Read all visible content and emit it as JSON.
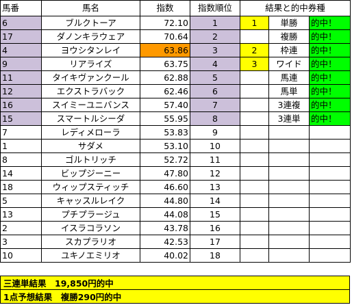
{
  "headers": {
    "umaban": "馬番",
    "bamei": "馬名",
    "shisu": "指数",
    "juni": "指数順位",
    "kekka": "結果と的中券種"
  },
  "rows": [
    {
      "umaban": "6",
      "bamei": "ブルクトーア",
      "shisu": "72.10",
      "juni": "1",
      "mark": "1",
      "ken": "単勝",
      "hit": "的中！"
    },
    {
      "umaban": "17",
      "bamei": "ダノンキラウェア",
      "shisu": "70.64",
      "juni": "2",
      "mark": "",
      "ken": "複勝",
      "hit": "的中！"
    },
    {
      "umaban": "4",
      "bamei": "ヨウシタンレイ",
      "shisu": "63.86",
      "juni": "3",
      "mark": "2",
      "ken": "枠連",
      "hit": "的中！"
    },
    {
      "umaban": "9",
      "bamei": "リアライズ",
      "shisu": "63.75",
      "juni": "4",
      "mark": "3",
      "ken": "ワイド",
      "hit": "的中！"
    },
    {
      "umaban": "11",
      "bamei": "タイキヴァンクール",
      "shisu": "62.88",
      "juni": "5",
      "mark": "",
      "ken": "馬連",
      "hit": "的中！"
    },
    {
      "umaban": "12",
      "bamei": "エクストラバック",
      "shisu": "62.46",
      "juni": "6",
      "mark": "",
      "ken": "馬単",
      "hit": "的中！"
    },
    {
      "umaban": "16",
      "bamei": "スイミーユニバンス",
      "shisu": "57.40",
      "juni": "7",
      "mark": "",
      "ken": "3連複",
      "hit": "的中！"
    },
    {
      "umaban": "15",
      "bamei": "スマートルシーダ",
      "shisu": "55.95",
      "juni": "8",
      "mark": "",
      "ken": "3連単",
      "hit": "的中！"
    },
    {
      "umaban": "7",
      "bamei": "レディメローラ",
      "shisu": "53.83",
      "juni": "9",
      "mark": "",
      "ken": "",
      "hit": ""
    },
    {
      "umaban": "1",
      "bamei": "サダメ",
      "shisu": "53.10",
      "juni": "10",
      "mark": "",
      "ken": "",
      "hit": ""
    },
    {
      "umaban": "8",
      "bamei": "ゴルトリッチ",
      "shisu": "52.72",
      "juni": "11",
      "mark": "",
      "ken": "",
      "hit": ""
    },
    {
      "umaban": "14",
      "bamei": "ビップジーニー",
      "shisu": "47.80",
      "juni": "12",
      "mark": "",
      "ken": "",
      "hit": ""
    },
    {
      "umaban": "18",
      "bamei": "ウィップスティッチ",
      "shisu": "46.60",
      "juni": "13",
      "mark": "",
      "ken": "",
      "hit": ""
    },
    {
      "umaban": "5",
      "bamei": "キャッスルレイク",
      "shisu": "44.80",
      "juni": "14",
      "mark": "",
      "ken": "",
      "hit": ""
    },
    {
      "umaban": "13",
      "bamei": "プチプラージュ",
      "shisu": "44.08",
      "juni": "15",
      "mark": "",
      "ken": "",
      "hit": ""
    },
    {
      "umaban": "2",
      "bamei": "イスラコラソン",
      "shisu": "43.78",
      "juni": "16",
      "mark": "",
      "ken": "",
      "hit": ""
    },
    {
      "umaban": "3",
      "bamei": "スカプラリオ",
      "shisu": "42.53",
      "juni": "17",
      "mark": "",
      "ken": "",
      "hit": ""
    },
    {
      "umaban": "10",
      "bamei": "ユキノエミリオ",
      "shisu": "40.02",
      "juni": "18",
      "mark": "",
      "ken": "",
      "hit": ""
    }
  ],
  "summary": {
    "line1": "三連単結果　19,850円的中",
    "line2": "1点予想結果　複勝290円的中"
  },
  "colors": {
    "top_rows_fill": "#ccc0da",
    "highlight_index": "#ff9900",
    "mark_fill": "#ffff00",
    "hit_fill": "#00ff00",
    "summary_fill": "#ffff00"
  }
}
